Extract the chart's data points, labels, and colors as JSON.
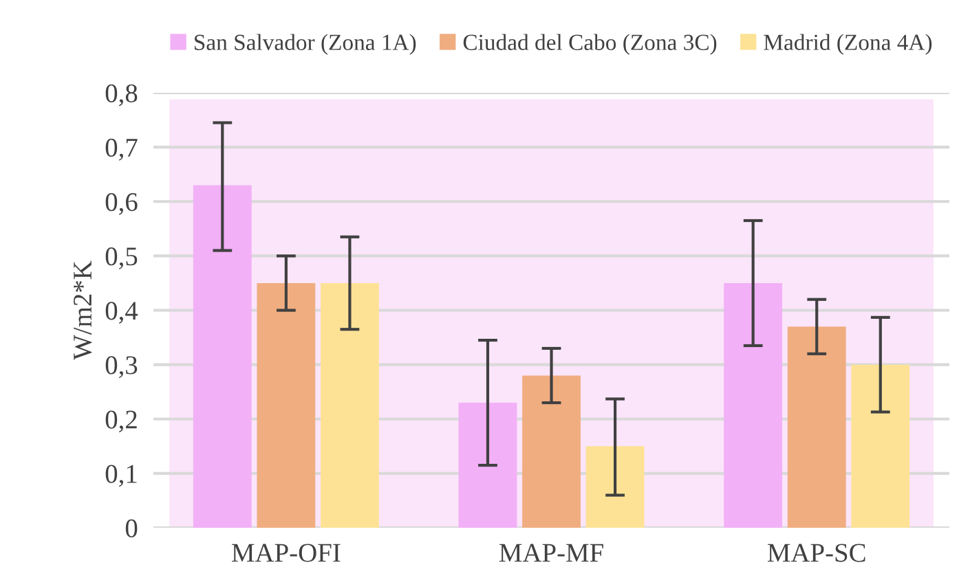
{
  "chart_data": {
    "type": "bar",
    "ylabel": "W/m2*K",
    "categories": [
      "MAP-OFI",
      "MAP-MF",
      "MAP-SC"
    ],
    "series": [
      {
        "name": "San Salvador (Zona 1A)",
        "color": "#f2b0f6",
        "values": [
          0.63,
          0.23,
          0.45
        ],
        "errors": [
          [
            0.51,
            0.745
          ],
          [
            0.115,
            0.345
          ],
          [
            0.335,
            0.565
          ]
        ]
      },
      {
        "name": "Ciudad del Cabo (Zona 3C)",
        "color": "#f0ad80",
        "values": [
          0.45,
          0.28,
          0.37
        ],
        "errors": [
          [
            0.4,
            0.5
          ],
          [
            0.23,
            0.33
          ],
          [
            0.32,
            0.42
          ]
        ]
      },
      {
        "name": "Madrid (Zona 4A)",
        "color": "#fde296",
        "values": [
          0.45,
          0.15,
          0.3
        ],
        "errors": [
          [
            0.365,
            0.535
          ],
          [
            0.06,
            0.237
          ],
          [
            0.213,
            0.387
          ]
        ]
      }
    ],
    "ylim": [
      0,
      0.8
    ],
    "yticks": [
      {
        "value": 0,
        "label": "0"
      },
      {
        "value": 0.1,
        "label": "0,1"
      },
      {
        "value": 0.2,
        "label": "0,2"
      },
      {
        "value": 0.3,
        "label": "0,3"
      },
      {
        "value": 0.4,
        "label": "0,4"
      },
      {
        "value": 0.5,
        "label": "0,5"
      },
      {
        "value": 0.6,
        "label": "0,6"
      },
      {
        "value": 0.7,
        "label": "0,7"
      },
      {
        "value": 0.8,
        "label": "0,8"
      }
    ],
    "grid": "y",
    "legend": "top"
  }
}
